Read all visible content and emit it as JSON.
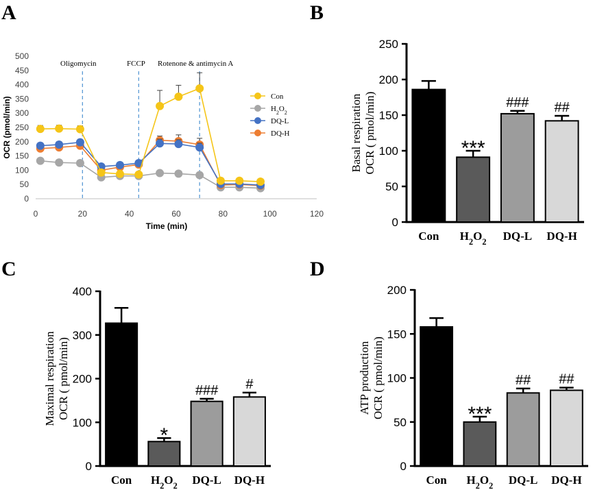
{
  "chart_data": [
    {
      "panel": "A",
      "type": "line",
      "title": "",
      "xlabel": "Time (min)",
      "ylabel": "OCR (pmol/min)",
      "xlim": [
        0,
        120
      ],
      "ylim": [
        0,
        500
      ],
      "xticks": [
        "0",
        "20",
        "40",
        "60",
        "80",
        "100",
        "120"
      ],
      "yticks": [
        "0",
        "50",
        "100",
        "150",
        "200",
        "250",
        "300",
        "350",
        "400",
        "450",
        "500"
      ],
      "x": [
        2,
        10,
        19,
        28,
        36,
        44,
        53,
        61,
        70,
        79,
        87,
        96
      ],
      "injections": [
        {
          "label": "Oligomycin",
          "x": 20
        },
        {
          "label": "FCCP",
          "x": 44
        },
        {
          "label": "Rotenone & antimycin A",
          "x": 70
        }
      ],
      "series": [
        {
          "name": "Con",
          "color": "#f5c518",
          "values": [
            245,
            246,
            244,
            92,
            87,
            85,
            325,
            358,
            387,
            63,
            63,
            60
          ],
          "errors": [
            12,
            12,
            12,
            8,
            6,
            6,
            55,
            40,
            55,
            8,
            8,
            6
          ]
        },
        {
          "name": "H2O2",
          "color": "#a6a6a6",
          "values": [
            133,
            127,
            125,
            75,
            80,
            80,
            90,
            88,
            83,
            40,
            40,
            37
          ],
          "errors": [
            8,
            8,
            8,
            5,
            5,
            5,
            8,
            8,
            8,
            4,
            4,
            4
          ]
        },
        {
          "name": "DQ-L",
          "color": "#4472c4",
          "values": [
            186,
            190,
            198,
            113,
            118,
            125,
            194,
            192,
            180,
            52,
            52,
            48
          ],
          "errors": [
            10,
            10,
            10,
            8,
            8,
            8,
            15,
            15,
            15,
            5,
            5,
            5
          ]
        },
        {
          "name": "DQ-H",
          "color": "#ed7d31",
          "values": [
            176,
            180,
            186,
            100,
            111,
            120,
            205,
            202,
            190,
            48,
            50,
            46
          ],
          "errors": [
            10,
            10,
            10,
            8,
            8,
            8,
            15,
            22,
            22,
            5,
            5,
            5
          ]
        }
      ],
      "legend": "right"
    },
    {
      "panel": "B",
      "type": "bar",
      "title": "",
      "ylabel_line1": "Basal respiration",
      "ylabel_line2": "OCR ( pmol/min)",
      "ylim": [
        0,
        250
      ],
      "yticks": [
        "0",
        "50",
        "100",
        "150",
        "200",
        "250"
      ],
      "categories": [
        "Con",
        "H2O2",
        "DQ-L",
        "DQ-H"
      ],
      "values": [
        186,
        91,
        152,
        142
      ],
      "errors": [
        12,
        9,
        4,
        7
      ],
      "significance": [
        "",
        "***",
        "###",
        "##"
      ]
    },
    {
      "panel": "C",
      "type": "bar",
      "title": "",
      "ylabel_line1": "Maximal respiration",
      "ylabel_line2": "OCR ( pmol/min)",
      "ylim": [
        0,
        400
      ],
      "yticks": [
        "0",
        "100",
        "200",
        "300",
        "400"
      ],
      "categories": [
        "Con",
        "H2O2",
        "DQ-L",
        "DQ-H"
      ],
      "values": [
        327,
        56,
        148,
        158
      ],
      "errors": [
        35,
        8,
        6,
        10
      ],
      "significance": [
        "",
        "*",
        "###",
        "#"
      ]
    },
    {
      "panel": "D",
      "type": "bar",
      "title": "",
      "ylabel_line1": "ATP production",
      "ylabel_line2": "OCR ( pmol/min)",
      "ylim": [
        0,
        200
      ],
      "yticks": [
        "0",
        "50",
        "100",
        "150",
        "200"
      ],
      "categories": [
        "Con",
        "H2O2",
        "DQ-L",
        "DQ-H"
      ],
      "values": [
        158,
        50,
        83,
        86
      ],
      "errors": [
        10,
        6,
        5,
        3
      ],
      "significance": [
        "",
        "***",
        "##",
        "##"
      ]
    }
  ],
  "bar_colors": [
    "#000000",
    "#5a5a5a",
    "#9c9c9c",
    "#d8d8d8"
  ]
}
